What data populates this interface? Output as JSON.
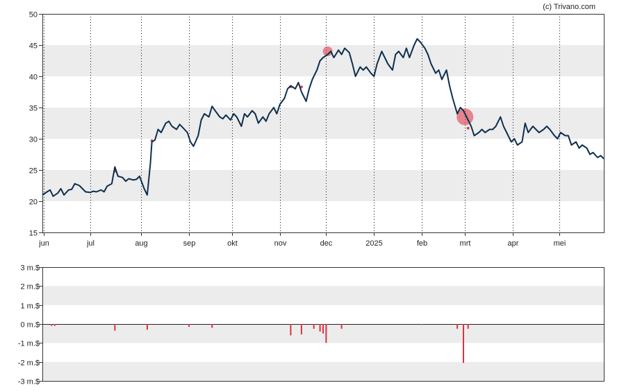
{
  "credit": "(c) Trivano.com",
  "chart_data": [
    {
      "type": "line",
      "title": "",
      "xlabel": "",
      "ylabel": "",
      "ylim": [
        15,
        50
      ],
      "yticks": [
        15,
        20,
        25,
        30,
        35,
        40,
        45,
        50
      ],
      "xlim": [
        "2024-05-31",
        "2025-05-30"
      ],
      "x_tick_labels": [
        {
          "date": "2024-06-01",
          "label": "jun"
        },
        {
          "date": "2024-07-01",
          "label": "jul"
        },
        {
          "date": "2024-08-03",
          "label": "aug"
        },
        {
          "date": "2024-09-03",
          "label": "sep"
        },
        {
          "date": "2024-10-01",
          "label": "okt"
        },
        {
          "date": "2024-11-01",
          "label": "nov"
        },
        {
          "date": "2024-12-01",
          "label": "dec"
        },
        {
          "date": "2025-01-01",
          "label": "2025"
        },
        {
          "date": "2025-02-01",
          "label": "feb"
        },
        {
          "date": "2025-03-01",
          "label": "mrt"
        },
        {
          "date": "2025-04-01",
          "label": "apr"
        },
        {
          "date": "2025-05-01",
          "label": "mei"
        }
      ],
      "grid": "vertical dotted lines at month starts, alternating horizontal bands",
      "line_color": "#0d2f4f",
      "marker_color": "#e03040",
      "series": [
        {
          "points": [
            [
              "2024-05-31",
              21.0
            ],
            [
              "2024-06-03",
              21.5
            ],
            [
              "2024-06-05",
              21.8
            ],
            [
              "2024-06-07",
              20.8
            ],
            [
              "2024-06-10",
              21.3
            ],
            [
              "2024-06-12",
              22.0
            ],
            [
              "2024-06-14",
              21.0
            ],
            [
              "2024-06-17",
              21.8
            ],
            [
              "2024-06-19",
              21.9
            ],
            [
              "2024-06-21",
              22.8
            ],
            [
              "2024-06-24",
              22.5
            ],
            [
              "2024-06-26",
              22.0
            ],
            [
              "2024-06-28",
              21.5
            ],
            [
              "2024-07-01",
              21.4
            ],
            [
              "2024-07-03",
              21.6
            ],
            [
              "2024-07-05",
              21.5
            ],
            [
              "2024-07-08",
              21.8
            ],
            [
              "2024-07-10",
              21.5
            ],
            [
              "2024-07-12",
              22.4
            ],
            [
              "2024-07-15",
              22.8
            ],
            [
              "2024-07-17",
              25.5
            ],
            [
              "2024-07-19",
              24.0
            ],
            [
              "2024-07-22",
              23.8
            ],
            [
              "2024-07-24",
              23.2
            ],
            [
              "2024-07-26",
              23.6
            ],
            [
              "2024-07-29",
              23.4
            ],
            [
              "2024-07-31",
              23.5
            ],
            [
              "2024-08-02",
              24.0
            ],
            [
              "2024-08-05",
              22.0
            ],
            [
              "2024-08-07",
              21.0
            ],
            [
              "2024-08-09",
              26.0
            ],
            [
              "2024-08-10",
              29.5
            ],
            [
              "2024-08-12",
              29.8
            ],
            [
              "2024-08-14",
              31.5
            ],
            [
              "2024-08-16",
              31.0
            ],
            [
              "2024-08-19",
              32.5
            ],
            [
              "2024-08-21",
              32.8
            ],
            [
              "2024-08-23",
              32.0
            ],
            [
              "2024-08-26",
              31.5
            ],
            [
              "2024-08-28",
              32.3
            ],
            [
              "2024-08-30",
              31.8
            ],
            [
              "2024-09-02",
              31.0
            ],
            [
              "2024-09-04",
              29.5
            ],
            [
              "2024-09-06",
              28.8
            ],
            [
              "2024-09-09",
              30.5
            ],
            [
              "2024-09-11",
              33.0
            ],
            [
              "2024-09-13",
              34.0
            ],
            [
              "2024-09-16",
              33.5
            ],
            [
              "2024-09-18",
              35.2
            ],
            [
              "2024-09-20",
              34.5
            ],
            [
              "2024-09-23",
              33.5
            ],
            [
              "2024-09-25",
              33.2
            ],
            [
              "2024-09-27",
              33.8
            ],
            [
              "2024-09-30",
              33.0
            ],
            [
              "2024-10-02",
              34.0
            ],
            [
              "2024-10-04",
              33.5
            ],
            [
              "2024-10-07",
              32.0
            ],
            [
              "2024-10-09",
              34.0
            ],
            [
              "2024-10-11",
              33.5
            ],
            [
              "2024-10-14",
              34.5
            ],
            [
              "2024-10-16",
              34.0
            ],
            [
              "2024-10-18",
              32.5
            ],
            [
              "2024-10-21",
              33.5
            ],
            [
              "2024-10-23",
              32.8
            ],
            [
              "2024-10-25",
              34.0
            ],
            [
              "2024-10-28",
              35.0
            ],
            [
              "2024-10-30",
              34.0
            ],
            [
              "2024-11-01",
              35.5
            ],
            [
              "2024-11-04",
              36.5
            ],
            [
              "2024-11-06",
              38.0
            ],
            [
              "2024-11-08",
              38.5
            ],
            [
              "2024-11-11",
              38.0
            ],
            [
              "2024-11-13",
              39.0
            ],
            [
              "2024-11-15",
              37.5
            ],
            [
              "2024-11-18",
              36.0
            ],
            [
              "2024-11-20",
              38.0
            ],
            [
              "2024-11-22",
              39.5
            ],
            [
              "2024-11-25",
              41.0
            ],
            [
              "2024-11-27",
              42.5
            ],
            [
              "2024-11-29",
              43.0
            ],
            [
              "2024-12-02",
              43.5
            ],
            [
              "2024-12-04",
              44.0
            ],
            [
              "2024-12-06",
              43.0
            ],
            [
              "2024-12-09",
              44.2
            ],
            [
              "2024-12-11",
              43.5
            ],
            [
              "2024-12-13",
              44.5
            ],
            [
              "2024-12-16",
              43.8
            ],
            [
              "2024-12-18",
              42.0
            ],
            [
              "2024-12-20",
              40.0
            ],
            [
              "2024-12-23",
              41.5
            ],
            [
              "2024-12-25",
              41.0
            ],
            [
              "2024-12-27",
              41.5
            ],
            [
              "2024-12-30",
              40.5
            ],
            [
              "2025-01-01",
              40.0
            ],
            [
              "2025-01-03",
              42.0
            ],
            [
              "2025-01-06",
              44.0
            ],
            [
              "2025-01-08",
              43.0
            ],
            [
              "2025-01-10",
              42.0
            ],
            [
              "2025-01-13",
              41.0
            ],
            [
              "2025-01-15",
              43.5
            ],
            [
              "2025-01-17",
              44.0
            ],
            [
              "2025-01-20",
              43.0
            ],
            [
              "2025-01-22",
              44.5
            ],
            [
              "2025-01-24",
              43.0
            ],
            [
              "2025-01-27",
              45.0
            ],
            [
              "2025-01-29",
              46.0
            ],
            [
              "2025-01-31",
              45.5
            ],
            [
              "2025-02-03",
              44.5
            ],
            [
              "2025-02-05",
              43.5
            ],
            [
              "2025-02-07",
              42.0
            ],
            [
              "2025-02-10",
              40.5
            ],
            [
              "2025-02-12",
              41.0
            ],
            [
              "2025-02-14",
              39.5
            ],
            [
              "2025-02-17",
              41.0
            ],
            [
              "2025-02-19",
              38.5
            ],
            [
              "2025-02-21",
              36.5
            ],
            [
              "2025-02-24",
              34.0
            ],
            [
              "2025-02-26",
              35.0
            ],
            [
              "2025-02-28",
              34.5
            ],
            [
              "2025-03-03",
              33.0
            ],
            [
              "2025-03-05",
              32.0
            ],
            [
              "2025-03-07",
              30.5
            ],
            [
              "2025-03-10",
              31.0
            ],
            [
              "2025-03-12",
              31.5
            ],
            [
              "2025-03-14",
              31.0
            ],
            [
              "2025-03-17",
              31.5
            ],
            [
              "2025-03-19",
              31.5
            ],
            [
              "2025-03-21",
              32.0
            ],
            [
              "2025-03-24",
              33.5
            ],
            [
              "2025-03-26",
              32.0
            ],
            [
              "2025-03-28",
              31.0
            ],
            [
              "2025-03-31",
              29.5
            ],
            [
              "2025-04-02",
              30.0
            ],
            [
              "2025-04-04",
              29.0
            ],
            [
              "2025-04-07",
              29.5
            ],
            [
              "2025-04-09",
              32.5
            ],
            [
              "2025-04-11",
              31.0
            ],
            [
              "2025-04-14",
              32.0
            ],
            [
              "2025-04-16",
              31.5
            ],
            [
              "2025-04-18",
              31.0
            ],
            [
              "2025-04-21",
              31.5
            ],
            [
              "2025-04-23",
              32.0
            ],
            [
              "2025-04-25",
              31.5
            ],
            [
              "2025-04-28",
              30.5
            ],
            [
              "2025-04-30",
              30.0
            ],
            [
              "2025-05-02",
              31.0
            ],
            [
              "2025-05-05",
              30.5
            ],
            [
              "2025-05-07",
              30.5
            ],
            [
              "2025-05-09",
              29.0
            ],
            [
              "2025-05-12",
              29.5
            ],
            [
              "2025-05-14",
              28.5
            ],
            [
              "2025-05-16",
              29.0
            ],
            [
              "2025-05-19",
              28.5
            ],
            [
              "2025-05-21",
              27.5
            ],
            [
              "2025-05-23",
              27.8
            ],
            [
              "2025-05-26",
              27.0
            ],
            [
              "2025-05-28",
              27.3
            ],
            [
              "2025-05-30",
              26.8
            ]
          ]
        }
      ],
      "markers": [
        {
          "date": "2024-07-17",
          "value": 24.8,
          "size": "small"
        },
        {
          "date": "2024-08-10",
          "value": 29.7,
          "size": "small"
        },
        {
          "date": "2024-11-08",
          "value": 38.3,
          "size": "small"
        },
        {
          "date": "2024-11-15",
          "value": 38.3,
          "size": "small"
        },
        {
          "date": "2024-12-02",
          "value": 44.0,
          "size": "medium"
        },
        {
          "date": "2025-03-01",
          "value": 33.5,
          "size": "large"
        },
        {
          "date": "2025-03-03",
          "value": 31.7,
          "size": "small"
        }
      ]
    },
    {
      "type": "bar",
      "title": "",
      "xlabel": "",
      "ylabel": "",
      "ylim": [
        -3,
        3
      ],
      "ytick_labels": [
        {
          "value": 3,
          "label": "3 m.$"
        },
        {
          "value": 2,
          "label": "2 m.$"
        },
        {
          "value": 1,
          "label": "1 m.$"
        },
        {
          "value": 0,
          "label": "0 m.$"
        },
        {
          "value": -1,
          "label": "-1 m.$"
        },
        {
          "value": -2,
          "label": "-2 m.$"
        },
        {
          "value": -3,
          "label": "-3 m.$"
        }
      ],
      "bar_color": "#e03040",
      "bars": [
        {
          "date": "2024-06-06",
          "value": -0.1
        },
        {
          "date": "2024-06-08",
          "value": -0.1
        },
        {
          "date": "2024-07-17",
          "value": -0.35
        },
        {
          "date": "2024-08-07",
          "value": -0.3
        },
        {
          "date": "2024-09-03",
          "value": -0.15
        },
        {
          "date": "2024-09-18",
          "value": -0.2
        },
        {
          "date": "2024-11-08",
          "value": -0.6
        },
        {
          "date": "2024-11-15",
          "value": -0.55
        },
        {
          "date": "2024-11-23",
          "value": -0.25
        },
        {
          "date": "2024-11-27",
          "value": -0.4
        },
        {
          "date": "2024-11-29",
          "value": -0.5
        },
        {
          "date": "2024-12-01",
          "value": -1.0
        },
        {
          "date": "2024-12-11",
          "value": -0.25
        },
        {
          "date": "2025-02-01",
          "value": -0.05
        },
        {
          "date": "2025-02-24",
          "value": -0.25
        },
        {
          "date": "2025-02-28",
          "value": -2.05
        },
        {
          "date": "2025-03-03",
          "value": -0.25
        }
      ]
    }
  ]
}
